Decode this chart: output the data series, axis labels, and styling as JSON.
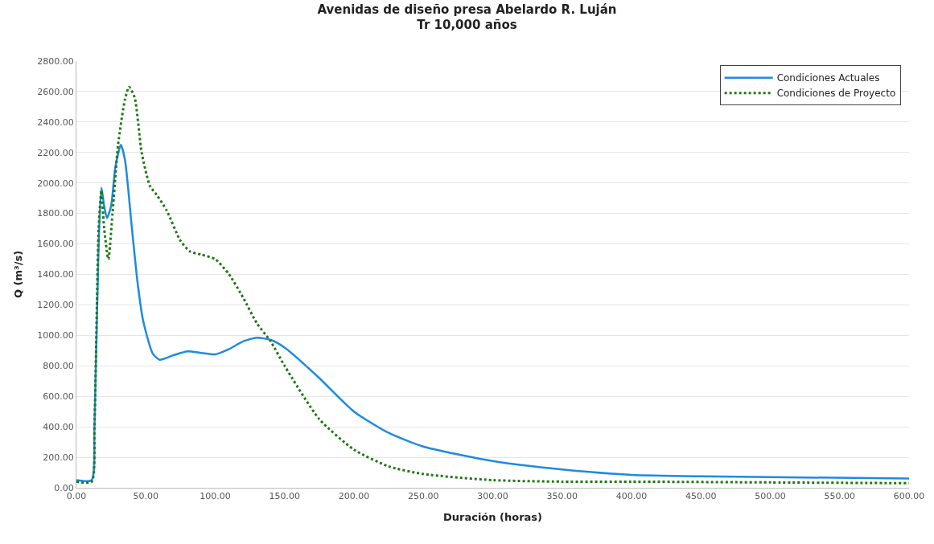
{
  "chart_data": {
    "type": "line",
    "title": "Avenidas de diseño presa Abelardo R. Luján\nTr 10,000 años",
    "xlabel": "Duración (horas)",
    "ylabel": "Q (m³/s)",
    "xlim": [
      0,
      600
    ],
    "xticks": [
      {
        "value": 0,
        "label": "0.00"
      },
      {
        "value": 50,
        "label": "50.00"
      },
      {
        "value": 100,
        "label": "100.00"
      },
      {
        "value": 150,
        "label": "150.00"
      },
      {
        "value": 200,
        "label": "200.00"
      },
      {
        "value": 250,
        "label": "250.00"
      },
      {
        "value": 300,
        "label": "300.00"
      },
      {
        "value": 350,
        "label": "350.00"
      },
      {
        "value": 400,
        "label": "400.00"
      },
      {
        "value": 450,
        "label": "450.00"
      },
      {
        "value": 500,
        "label": "500.00"
      },
      {
        "value": 550,
        "label": "550.00"
      },
      {
        "value": 600,
        "label": "600.00"
      }
    ],
    "ylim": [
      0,
      2800
    ],
    "yticks": [
      {
        "value": 0,
        "label": "0.00"
      },
      {
        "value": 200,
        "label": "200.00"
      },
      {
        "value": 400,
        "label": "400.00"
      },
      {
        "value": 600,
        "label": "600.00"
      },
      {
        "value": 800,
        "label": "800.00"
      },
      {
        "value": 1000,
        "label": "1000.00"
      },
      {
        "value": 1200,
        "label": "1200.00"
      },
      {
        "value": 1400,
        "label": "1400.00"
      },
      {
        "value": 1600,
        "label": "1600.00"
      },
      {
        "value": 1800,
        "label": "1800.00"
      },
      {
        "value": 2000,
        "label": "2000.00"
      },
      {
        "value": 2200,
        "label": "2200.00"
      },
      {
        "value": 2400,
        "label": "2400.00"
      },
      {
        "value": 2600,
        "label": "2600.00"
      },
      {
        "value": 2800,
        "label": "2800.00"
      }
    ],
    "grid": "y",
    "legend": "top right",
    "series": [
      {
        "name": "Condiciones Actuales",
        "color": "#1f8ae0",
        "line_style": "solid",
        "x": [
          0,
          11,
          13,
          16,
          18,
          20,
          22,
          25,
          28,
          32,
          35,
          40,
          44,
          48,
          55,
          60,
          70,
          80,
          90,
          100,
          110,
          120,
          130,
          140,
          150,
          175,
          200,
          225,
          250,
          300,
          350,
          400,
          450,
          500,
          600
        ],
        "values": [
          50,
          50,
          400,
          1600,
          1970,
          1850,
          1770,
          1850,
          2100,
          2250,
          2150,
          1700,
          1350,
          1100,
          880,
          840,
          870,
          895,
          885,
          875,
          910,
          960,
          985,
          970,
          920,
          720,
          500,
          360,
          270,
          175,
          120,
          85,
          75,
          70,
          60
        ]
      },
      {
        "name": "Condiciones de Proyecto",
        "color": "#1e7a12",
        "line_style": "dotted",
        "x": [
          0,
          11,
          13,
          16,
          18,
          20,
          23,
          26,
          30,
          35,
          38,
          42,
          47,
          53,
          58,
          65,
          75,
          82,
          90,
          100,
          110,
          120,
          130,
          140,
          150,
          175,
          200,
          225,
          250,
          300,
          350,
          400,
          500,
          600
        ],
        "values": [
          40,
          40,
          400,
          1700,
          1950,
          1700,
          1500,
          1800,
          2250,
          2550,
          2630,
          2560,
          2200,
          1980,
          1920,
          1820,
          1620,
          1550,
          1530,
          1500,
          1400,
          1250,
          1080,
          960,
          800,
          450,
          250,
          140,
          90,
          50,
          40,
          40,
          35,
          30
        ]
      }
    ]
  }
}
